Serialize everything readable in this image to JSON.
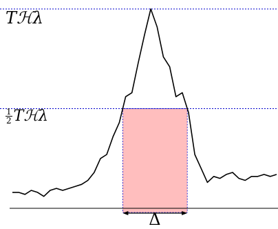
{
  "labels": {
    "peak": "Tℋλ",
    "half_numerator": "1",
    "half_denominator": "2",
    "half": "Tℋλ",
    "width": "Δ"
  },
  "colors": {
    "signal": "#000000",
    "guide_lines": "#0000cc",
    "window_fill": "#ffbebe",
    "baseline": "#000000"
  },
  "curve": {
    "description_values": [
      0.08,
      0.08,
      0.07,
      0.09,
      0.08,
      0.06,
      0.09,
      0.1,
      0.09,
      0.1,
      0.11,
      0.12,
      0.14,
      0.18,
      0.25,
      0.27,
      0.36,
      0.43,
      0.56,
      0.58,
      0.73,
      0.87,
      1.0,
      0.91,
      0.76,
      0.71,
      0.56,
      0.58,
      0.48,
      0.27,
      0.2,
      0.13,
      0.16,
      0.15,
      0.17,
      0.18,
      0.15,
      0.14,
      0.16,
      0.16,
      0.17,
      0.16,
      0.17
    ]
  },
  "half_level": 0.5
}
